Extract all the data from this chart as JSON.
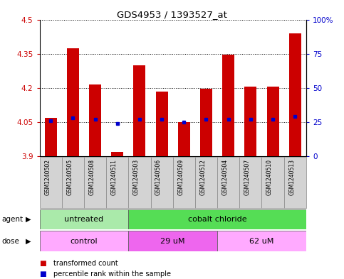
{
  "title": "GDS4953 / 1393527_at",
  "samples": [
    "GSM1240502",
    "GSM1240505",
    "GSM1240508",
    "GSM1240511",
    "GSM1240503",
    "GSM1240506",
    "GSM1240509",
    "GSM1240512",
    "GSM1240504",
    "GSM1240507",
    "GSM1240510",
    "GSM1240513"
  ],
  "transformed_count": [
    4.07,
    4.375,
    4.215,
    3.92,
    4.3,
    4.185,
    4.05,
    4.195,
    4.345,
    4.205,
    4.205,
    4.44
  ],
  "percentile_rank": [
    26,
    28,
    27,
    24,
    27,
    27,
    25,
    27,
    27,
    27,
    27,
    29
  ],
  "baseline": 3.9,
  "ylim_left": [
    3.9,
    4.5
  ],
  "ylim_right": [
    0,
    100
  ],
  "yticks_left": [
    3.9,
    4.05,
    4.2,
    4.35,
    4.5
  ],
  "yticks_right": [
    0,
    25,
    50,
    75,
    100
  ],
  "ytick_labels_left": [
    "3.9",
    "4.05",
    "4.2",
    "4.35",
    "4.5"
  ],
  "ytick_labels_right": [
    "0",
    "25",
    "50",
    "75",
    "100%"
  ],
  "agent_groups": [
    {
      "label": "untreated",
      "start": 0,
      "end": 4,
      "color": "#aaeaaa"
    },
    {
      "label": "cobalt chloride",
      "start": 4,
      "end": 12,
      "color": "#55dd55"
    }
  ],
  "dose_groups": [
    {
      "label": "control",
      "start": 0,
      "end": 4,
      "color": "#ffaaff"
    },
    {
      "label": "29 uM",
      "start": 4,
      "end": 8,
      "color": "#ee66ee"
    },
    {
      "label": "62 uM",
      "start": 8,
      "end": 12,
      "color": "#ffaaff"
    }
  ],
  "bar_color": "#cc0000",
  "percentile_color": "#0000cc",
  "bar_width": 0.55,
  "grid_color": "#000000",
  "left_label_color": "#cc0000",
  "right_label_color": "#0000cc",
  "sample_box_color": "#d3d3d3",
  "legend_items": [
    {
      "label": "transformed count",
      "color": "#cc0000"
    },
    {
      "label": "percentile rank within the sample",
      "color": "#0000cc"
    }
  ]
}
